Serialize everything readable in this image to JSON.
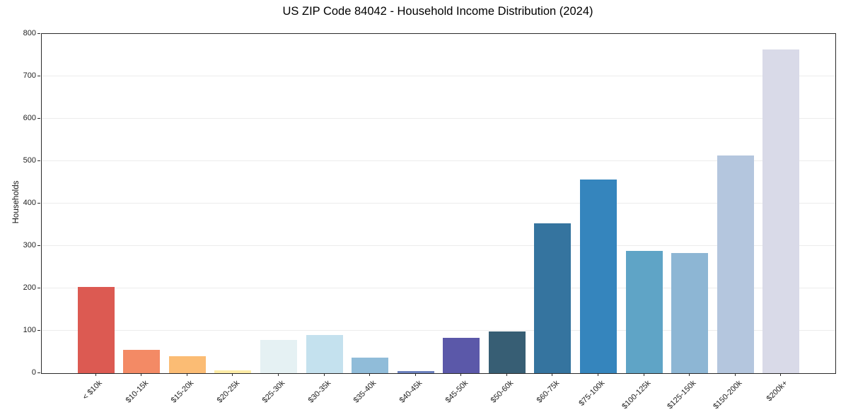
{
  "figure": {
    "title": "US ZIP Code 84042 - Household Income Distribution (2024)",
    "ylabel": "Households"
  },
  "chart_data": {
    "type": "bar",
    "title": "US ZIP Code 84042 - Household Income Distribution (2024)",
    "xlabel": "",
    "ylabel": "Households",
    "categories": [
      "< $10k",
      "$10-15k",
      "$15-20k",
      "$20-25k",
      "$25-30k",
      "$30-35k",
      "$35-40k",
      "$40-45k",
      "$45-50k",
      "$50-60k",
      "$60-75k",
      "$75-100k",
      "$100-125k",
      "$125-150k",
      "$150-200k",
      "$200k+"
    ],
    "values": [
      203,
      55,
      40,
      7,
      79,
      90,
      36,
      5,
      83,
      98,
      353,
      456,
      288,
      284,
      513,
      764
    ],
    "bar_colors": [
      "#dc5a52",
      "#f38a65",
      "#fbbc74",
      "#fdeca6",
      "#e5f1f3",
      "#c4e1ee",
      "#90bcd9",
      "#6b80bd",
      "#5b58a9",
      "#375e74",
      "#35749f",
      "#3585bd",
      "#5fa4c6",
      "#8db6d4",
      "#b4c6de",
      "#d9dae8"
    ],
    "ylim": [
      0,
      800
    ],
    "yticks": [
      0,
      100,
      200,
      300,
      400,
      500,
      600,
      700,
      800
    ],
    "grid": "horizontal",
    "gridline_color": "#ececec",
    "spine_color": "#2a2a2a",
    "background": "#ffffff",
    "legend": "none"
  }
}
